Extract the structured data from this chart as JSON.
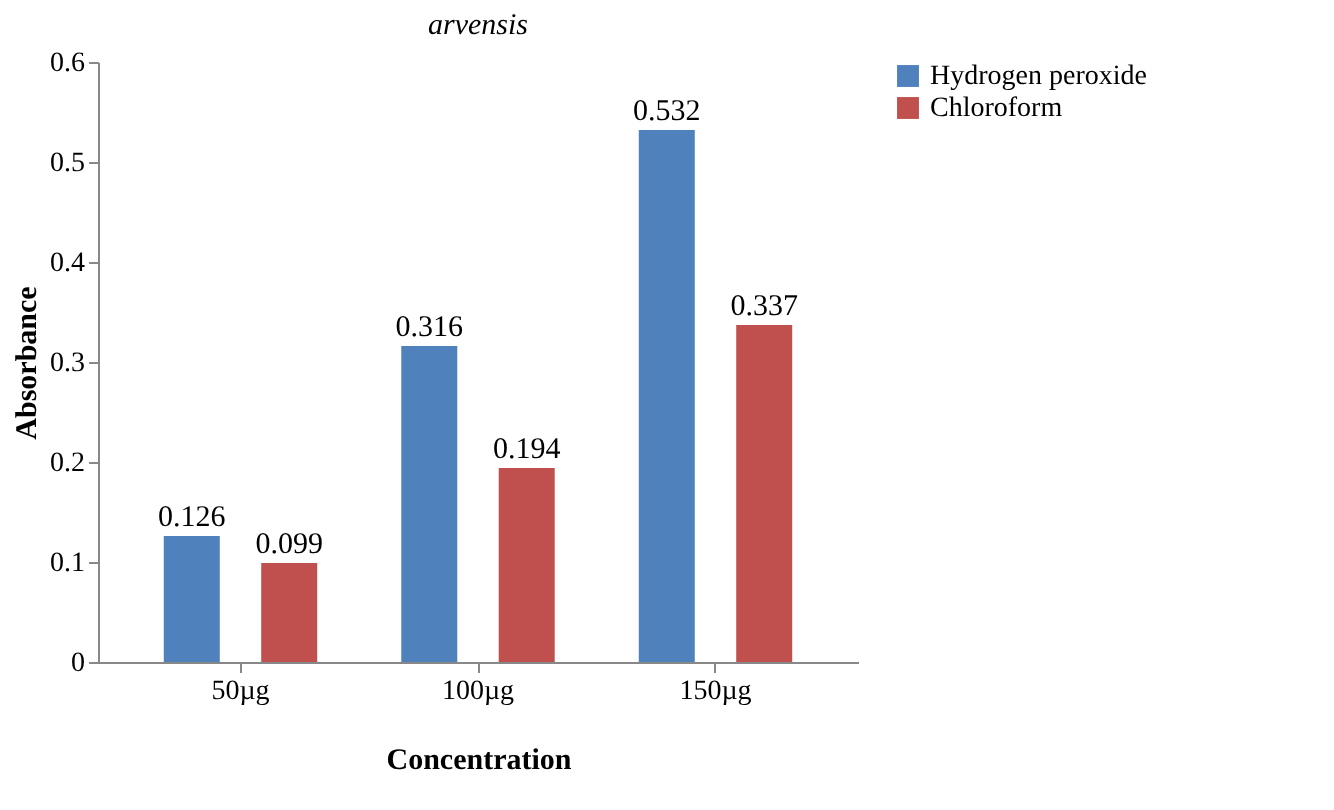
{
  "chart_data": {
    "type": "bar",
    "title": "arvensis",
    "xlabel": "Concentration",
    "ylabel": "Absorbance",
    "categories": [
      "50µg",
      "100µg",
      "150µg"
    ],
    "series": [
      {
        "name": "Hydrogen peroxide",
        "color": "#4f81bd",
        "values": [
          0.126,
          0.316,
          0.532
        ]
      },
      {
        "name": "Chloroform",
        "color": "#c0504d",
        "values": [
          0.099,
          0.194,
          0.337
        ]
      }
    ],
    "ylim": [
      0,
      0.6
    ],
    "yticks": [
      0,
      0.1,
      0.2,
      0.3,
      0.4,
      0.5,
      0.6
    ],
    "grid": false,
    "legend": "right",
    "data_labels": true
  }
}
